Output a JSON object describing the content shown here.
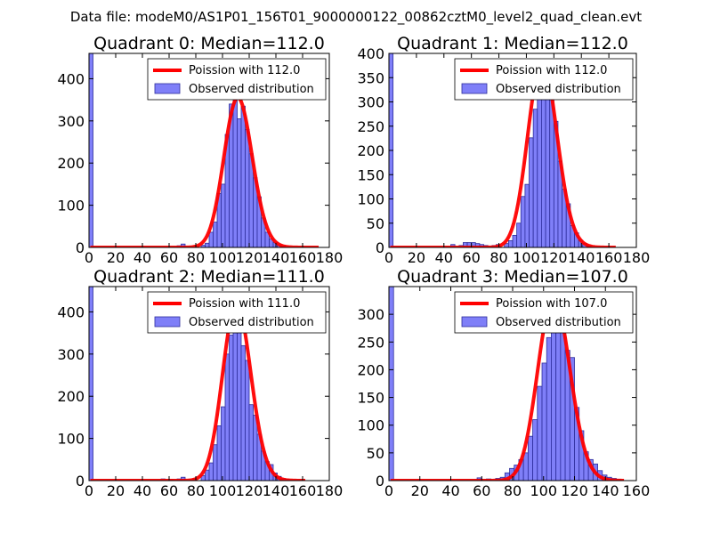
{
  "figure": {
    "suptitle": "Data file: modeM0/AS1P01_156T01_9000000122_00862cztM0_level2_quad_clean.evt"
  },
  "colors": {
    "bar_fill": "#7f7ff8",
    "bar_edge": "#2d2d9c",
    "curve": "#ff0000",
    "axes": "#000000"
  },
  "chart_data": [
    {
      "type": "bar",
      "title": "Quadrant 0: Median=112.0",
      "xlim": [
        0,
        180
      ],
      "ylim": [
        0,
        460
      ],
      "xticks": [
        0,
        20,
        40,
        60,
        80,
        100,
        120,
        140,
        160,
        180
      ],
      "yticks": [
        0,
        100,
        200,
        300,
        400
      ],
      "bin_width": 3,
      "bins": [
        [
          0,
          460
        ],
        [
          66,
          4
        ],
        [
          69,
          8
        ],
        [
          84,
          5
        ],
        [
          87,
          10
        ],
        [
          90,
          36
        ],
        [
          93,
          60
        ],
        [
          96,
          128
        ],
        [
          99,
          150
        ],
        [
          102,
          268
        ],
        [
          105,
          340
        ],
        [
          108,
          355
        ],
        [
          111,
          305
        ],
        [
          114,
          335
        ],
        [
          117,
          280
        ],
        [
          120,
          222
        ],
        [
          123,
          165
        ],
        [
          126,
          120
        ],
        [
          129,
          70
        ],
        [
          132,
          36
        ],
        [
          135,
          20
        ],
        [
          138,
          12
        ],
        [
          141,
          6
        ],
        [
          144,
          4
        ]
      ],
      "legend": [
        "Poission with 112.0",
        "Observed distribution"
      ],
      "poisson_mu": 112.0,
      "curve_x_range": [
        1,
        172
      ]
    },
    {
      "type": "bar",
      "title": "Quadrant 1: Median=112.0",
      "xlim": [
        0,
        180
      ],
      "ylim": [
        0,
        400
      ],
      "xticks": [
        0,
        20,
        40,
        60,
        80,
        100,
        120,
        140,
        160,
        180
      ],
      "yticks": [
        0,
        50,
        100,
        150,
        200,
        250,
        300,
        350,
        400
      ],
      "bin_width": 3,
      "bins": [
        [
          0,
          400
        ],
        [
          45,
          6
        ],
        [
          51,
          4
        ],
        [
          54,
          10
        ],
        [
          57,
          10
        ],
        [
          60,
          10
        ],
        [
          63,
          8
        ],
        [
          66,
          6
        ],
        [
          69,
          4
        ],
        [
          75,
          4
        ],
        [
          78,
          6
        ],
        [
          84,
          8
        ],
        [
          87,
          14
        ],
        [
          90,
          25
        ],
        [
          93,
          50
        ],
        [
          96,
          105
        ],
        [
          99,
          130
        ],
        [
          102,
          226
        ],
        [
          105,
          285
        ],
        [
          108,
          325
        ],
        [
          111,
          385
        ],
        [
          114,
          350
        ],
        [
          117,
          310
        ],
        [
          120,
          260
        ],
        [
          123,
          178
        ],
        [
          126,
          120
        ],
        [
          129,
          90
        ],
        [
          132,
          45
        ],
        [
          135,
          30
        ],
        [
          138,
          15
        ],
        [
          141,
          8
        ],
        [
          144,
          4
        ]
      ],
      "legend": [
        "Poission with 112.0",
        "Observed distribution"
      ],
      "poisson_mu": 112.0,
      "curve_x_range": [
        1,
        165
      ]
    },
    {
      "type": "bar",
      "title": "Quadrant 2: Median=111.0",
      "xlim": [
        0,
        180
      ],
      "ylim": [
        0,
        460
      ],
      "xticks": [
        0,
        20,
        40,
        60,
        80,
        100,
        120,
        140,
        160,
        180
      ],
      "yticks": [
        0,
        100,
        200,
        300,
        400
      ],
      "bin_width": 3,
      "bins": [
        [
          0,
          460
        ],
        [
          54,
          4
        ],
        [
          60,
          2
        ],
        [
          66,
          4
        ],
        [
          69,
          8
        ],
        [
          78,
          5
        ],
        [
          84,
          12
        ],
        [
          87,
          25
        ],
        [
          90,
          42
        ],
        [
          93,
          85
        ],
        [
          96,
          130
        ],
        [
          99,
          175
        ],
        [
          102,
          300
        ],
        [
          105,
          345
        ],
        [
          108,
          420
        ],
        [
          111,
          355
        ],
        [
          114,
          320
        ],
        [
          117,
          285
        ],
        [
          120,
          180
        ],
        [
          123,
          155
        ],
        [
          126,
          110
        ],
        [
          129,
          70
        ],
        [
          132,
          45
        ],
        [
          135,
          38
        ],
        [
          138,
          18
        ],
        [
          141,
          10
        ],
        [
          144,
          5
        ],
        [
          147,
          3
        ]
      ],
      "legend": [
        "Poission with 111.0",
        "Observed distribution"
      ],
      "poisson_mu": 111.0,
      "curve_x_range": [
        1,
        162
      ]
    },
    {
      "type": "bar",
      "title": "Quadrant 3: Median=107.0",
      "xlim": [
        0,
        160
      ],
      "ylim": [
        0,
        350
      ],
      "xticks": [
        0,
        20,
        40,
        60,
        80,
        100,
        120,
        140,
        160
      ],
      "yticks": [
        0,
        50,
        100,
        150,
        200,
        250,
        300
      ],
      "bin_width": 3,
      "bins": [
        [
          0,
          350
        ],
        [
          57,
          5
        ],
        [
          63,
          3
        ],
        [
          69,
          4
        ],
        [
          72,
          6
        ],
        [
          75,
          14
        ],
        [
          78,
          22
        ],
        [
          81,
          28
        ],
        [
          84,
          38
        ],
        [
          87,
          50
        ],
        [
          90,
          80
        ],
        [
          93,
          110
        ],
        [
          96,
          170
        ],
        [
          99,
          212
        ],
        [
          102,
          258
        ],
        [
          105,
          295
        ],
        [
          108,
          332
        ],
        [
          111,
          305
        ],
        [
          114,
          235
        ],
        [
          117,
          222
        ],
        [
          120,
          132
        ],
        [
          123,
          90
        ],
        [
          126,
          52
        ],
        [
          129,
          38
        ],
        [
          132,
          30
        ],
        [
          135,
          18
        ],
        [
          138,
          10
        ],
        [
          141,
          6
        ],
        [
          144,
          4
        ],
        [
          147,
          2
        ]
      ],
      "legend": [
        "Poission with 107.0",
        "Observed distribution"
      ],
      "poisson_mu": 107.0,
      "curve_x_range": [
        1,
        152
      ]
    }
  ]
}
